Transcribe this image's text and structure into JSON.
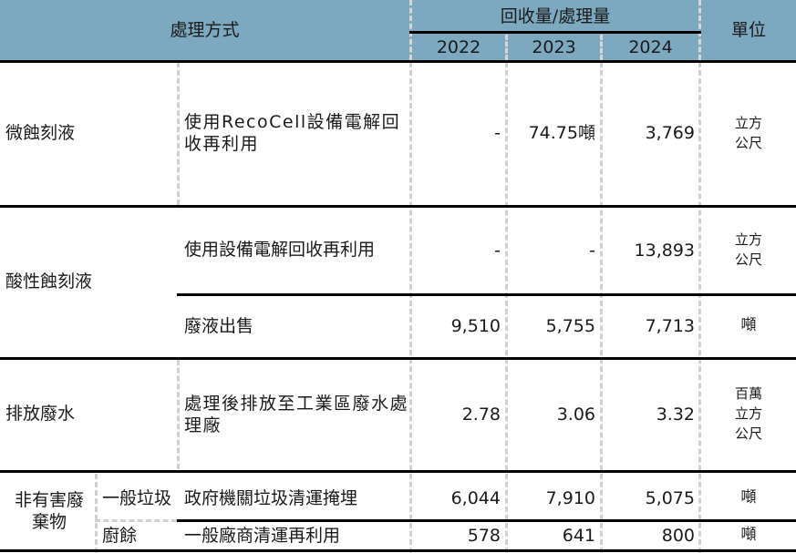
{
  "header": {
    "method": "處理方式",
    "amount": "回收量/處理量",
    "years": [
      "2022",
      "2023",
      "2024"
    ],
    "unit": "單位"
  },
  "rows": [
    {
      "category": "微蝕刻液",
      "method": "使用RecoCell設備電解回收再利用",
      "v2022": "-",
      "v2023": "74.75噸",
      "v2024": "3,769",
      "unit": "立方\n公尺"
    },
    {
      "category": "酸性蝕刻液",
      "method": "使用設備電解回收再利用",
      "v2022": "-",
      "v2023": "-",
      "v2024": "13,893",
      "unit": "立方\n公尺"
    },
    {
      "category": "",
      "method": "廢液出售",
      "v2022": "9,510",
      "v2023": "5,755",
      "v2024": "7,713",
      "unit": "噸"
    },
    {
      "category": "排放廢水",
      "method": "處理後排放至工業區廢水處理廠",
      "v2022": "2.78",
      "v2023": "3.06",
      "v2024": "3.32",
      "unit": "百萬\n立方\n公尺"
    },
    {
      "category": "非有害廢\n棄物",
      "subcategory": "一般垃圾",
      "method": "政府機關垃圾清運掩埋",
      "v2022": "6,044",
      "v2023": "7,910",
      "v2024": "5,075",
      "unit": "噸"
    },
    {
      "category": "",
      "subcategory": "廚餘",
      "method": "一般廠商清運再利用",
      "v2022": "578",
      "v2023": "641",
      "v2024": "800",
      "unit": "噸"
    }
  ]
}
